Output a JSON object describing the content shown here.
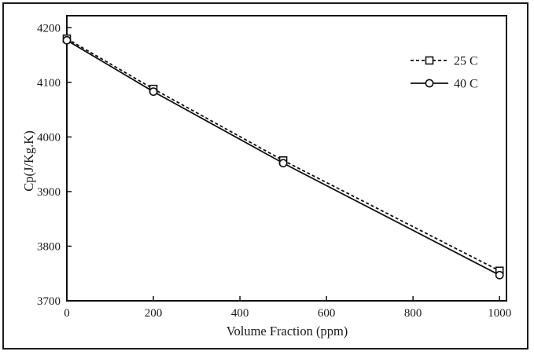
{
  "chart_data": {
    "type": "line",
    "title": "",
    "xlabel": "Volume Fraction (ppm)",
    "ylabel": "Cp(J/Kg.K)",
    "x": [
      0,
      200,
      500,
      1000
    ],
    "series": [
      {
        "name": "25 C",
        "values": [
          4180,
          4088,
          3957,
          3755
        ],
        "line_style": "dashed",
        "marker": "square"
      },
      {
        "name": "40 C",
        "values": [
          4177,
          4083,
          3952,
          3747
        ],
        "line_style": "solid",
        "marker": "circle"
      }
    ],
    "xticks": [
      0,
      200,
      400,
      600,
      800,
      1000
    ],
    "yticks": [
      3700,
      3800,
      3900,
      4000,
      4100,
      4200
    ],
    "xlim": [
      0,
      1016
    ],
    "ylim": [
      3700,
      4222
    ],
    "grid": false,
    "legend_position": "upper-right",
    "color": "#111111",
    "marker_fill": "#ffffff",
    "background": "#ffffff"
  }
}
